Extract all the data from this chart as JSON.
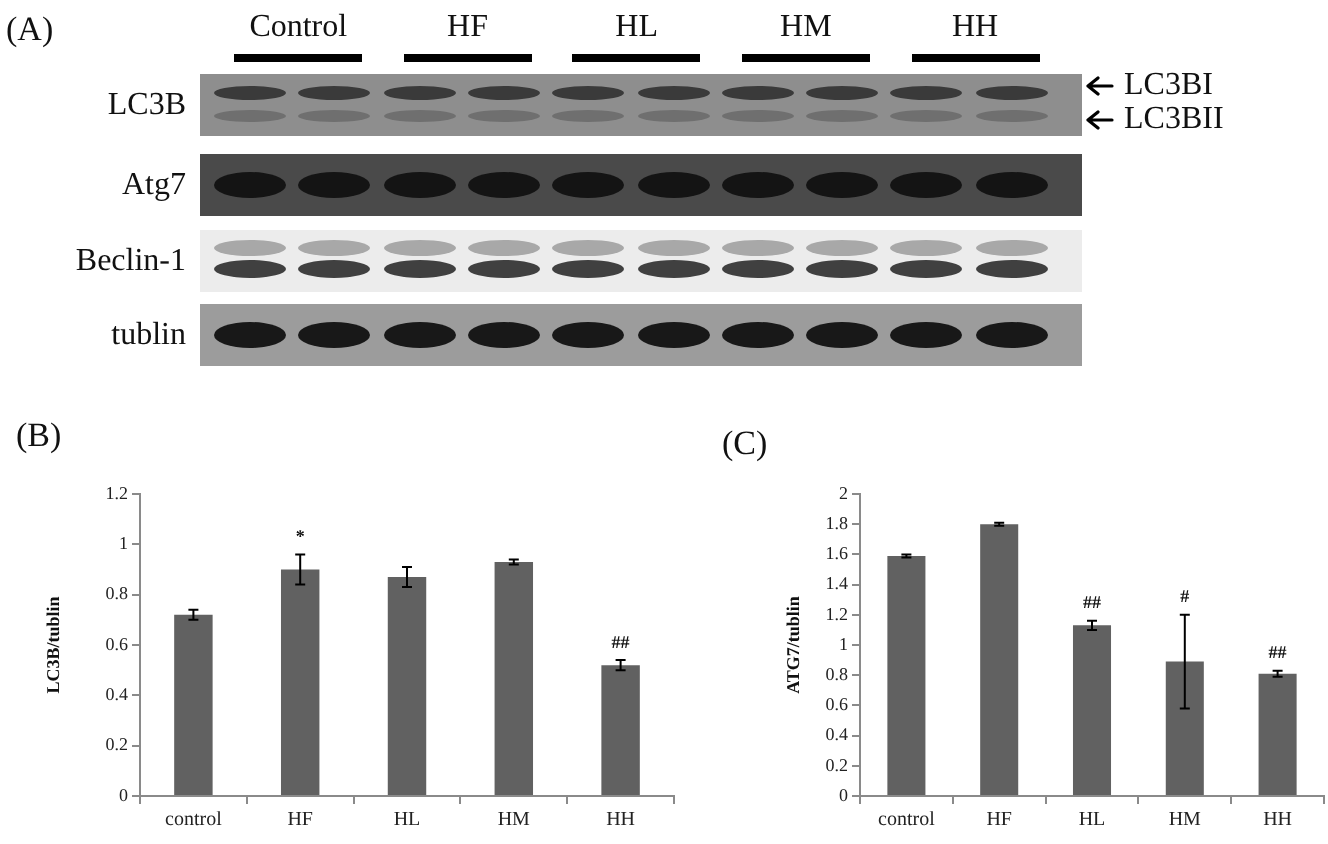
{
  "chart_data": [
    {
      "type": "other",
      "title": "(A)",
      "categories": [
        "Control",
        "HF",
        "HL",
        "HM",
        "HH"
      ],
      "y_categories": [
        "LC3B",
        "Atg7",
        "Beclin-1",
        "tublin"
      ],
      "annotations": [
        "LC3BI",
        "LC3BII"
      ]
    },
    {
      "type": "bar",
      "title": "(B)",
      "ylabel": "LC3B/tublin",
      "categories": [
        "control",
        "HF",
        "HL",
        "HM",
        "HH"
      ],
      "values": [
        0.72,
        0.9,
        0.87,
        0.93,
        0.52
      ],
      "errors": [
        0.02,
        0.06,
        0.04,
        0.01,
        0.02
      ],
      "color": "#616161",
      "ylim": [
        0,
        1.2
      ],
      "yticks": [
        0,
        0.2,
        0.4,
        0.6,
        0.8,
        1,
        1.2
      ],
      "annotations": [
        {
          "text": "*",
          "x": "HF",
          "y": 0.9
        },
        {
          "text": "##",
          "x": "HH",
          "y": 0.52
        }
      ]
    },
    {
      "type": "bar",
      "title": "(C)",
      "ylabel": "ATG7/tublin",
      "categories": [
        "control",
        "HF",
        "HL",
        "HM",
        "HH"
      ],
      "values": [
        1.59,
        1.8,
        1.13,
        0.89,
        0.81
      ],
      "errors": [
        0.01,
        0.01,
        0.03,
        0.31,
        0.02
      ],
      "color": "#616161",
      "ylim": [
        0,
        2
      ],
      "yticks": [
        0,
        0.2,
        0.4,
        0.6,
        0.8,
        1,
        1.2,
        1.4,
        1.6,
        1.8,
        2
      ],
      "annotations": [
        {
          "text": "##",
          "x": "HL",
          "y": 1.13
        },
        {
          "text": "#",
          "x": "HM",
          "y": 1.2
        },
        {
          "text": "##",
          "x": "HH",
          "y": 0.81
        }
      ]
    }
  ]
}
